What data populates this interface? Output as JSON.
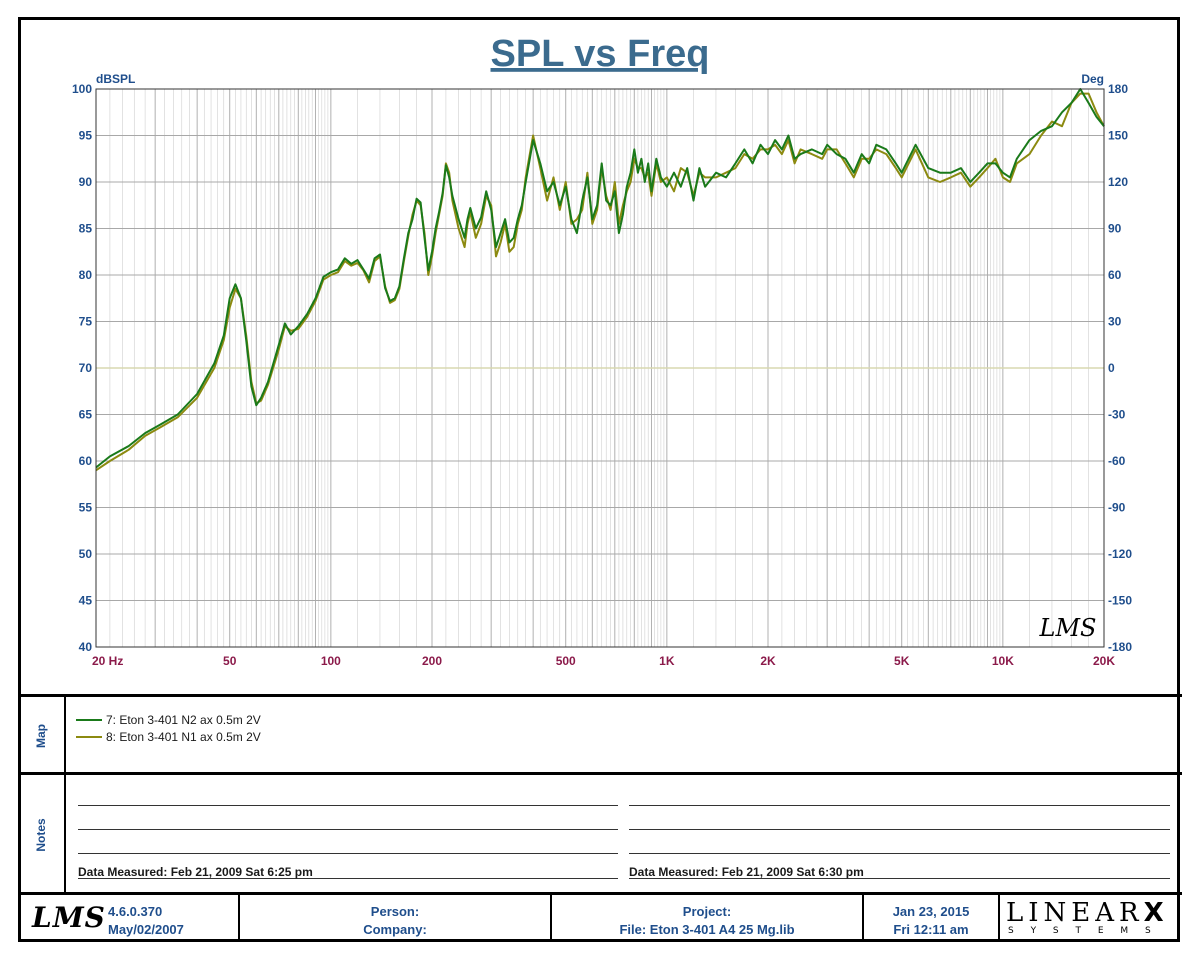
{
  "chart_data": {
    "type": "line",
    "title": "SPL vs Freq",
    "ylabel_left": "dBSPL",
    "ylabel_right": "Deg",
    "x_scale": "log",
    "xlim": [
      20,
      20000
    ],
    "ylim": [
      40,
      100
    ],
    "y2lim": [
      -180,
      180
    ],
    "x_ticks": [
      20,
      50,
      100,
      200,
      500,
      1000,
      2000,
      5000,
      10000,
      20000
    ],
    "x_tick_labels": [
      "20  Hz",
      "50",
      "100",
      "200",
      "500",
      "1K",
      "2K",
      "5K",
      "10K",
      "20K"
    ],
    "y_ticks": [
      100,
      95,
      90,
      85,
      80,
      75,
      70,
      65,
      60,
      55,
      50,
      45,
      40
    ],
    "y_tick_labels": [
      "100",
      "95",
      "90",
      "85",
      "80",
      "75",
      "70",
      "65",
      "60",
      "55",
      "50",
      "45",
      "40"
    ],
    "y2_tick_labels": [
      "180",
      "150",
      "120",
      "90",
      "60",
      "30",
      "0",
      "-30",
      "-60",
      "-90",
      "-120",
      "-150",
      "-180"
    ],
    "grid": true,
    "watermark": "LMS",
    "x": [
      20,
      22,
      25,
      28,
      31,
      35,
      40,
      45,
      48,
      50,
      52,
      54,
      56,
      58,
      60,
      62,
      65,
      70,
      73,
      76,
      80,
      85,
      90,
      95,
      100,
      105,
      110,
      115,
      120,
      125,
      130,
      135,
      140,
      145,
      150,
      155,
      160,
      165,
      170,
      175,
      180,
      185,
      190,
      195,
      200,
      205,
      210,
      215,
      220,
      225,
      230,
      240,
      250,
      255,
      260,
      270,
      280,
      290,
      300,
      310,
      320,
      330,
      340,
      350,
      360,
      370,
      380,
      400,
      420,
      440,
      460,
      480,
      500,
      520,
      540,
      560,
      580,
      600,
      620,
      640,
      660,
      680,
      700,
      720,
      740,
      760,
      780,
      800,
      820,
      840,
      860,
      880,
      900,
      930,
      960,
      1000,
      1050,
      1100,
      1150,
      1200,
      1250,
      1300,
      1400,
      1500,
      1600,
      1700,
      1800,
      1900,
      2000,
      2100,
      2200,
      2300,
      2400,
      2500,
      2700,
      2900,
      3000,
      3200,
      3400,
      3600,
      3800,
      4000,
      4200,
      4500,
      4800,
      5000,
      5500,
      6000,
      6500,
      7000,
      7500,
      8000,
      8500,
      9000,
      9500,
      10000,
      10500,
      11000,
      12000,
      13000,
      14000,
      15000,
      16000,
      17000,
      18000,
      19000,
      20000
    ],
    "series": [
      {
        "name": "7: Eton 3-401  N2 ax 0.5m 2V",
        "color": "#1a7a1a",
        "values": [
          59.3,
          60.5,
          61.6,
          63.0,
          63.9,
          65.0,
          67.2,
          70.5,
          73.5,
          77.5,
          79.0,
          77.5,
          73.0,
          68.0,
          66.0,
          66.8,
          68.5,
          72.5,
          74.8,
          73.6,
          74.5,
          75.8,
          77.5,
          79.8,
          80.3,
          80.6,
          81.8,
          81.2,
          81.6,
          80.6,
          79.6,
          81.8,
          82.2,
          78.6,
          77.2,
          77.5,
          78.8,
          81.8,
          84.5,
          86.0,
          88.2,
          87.8,
          84.0,
          80.5,
          82.5,
          85.0,
          86.8,
          88.8,
          91.8,
          90.5,
          88.5,
          86.0,
          84.0,
          86.0,
          87.2,
          85.0,
          86.2,
          89.0,
          87.0,
          83.0,
          84.5,
          86.0,
          83.5,
          84.0,
          86.0,
          87.5,
          90.0,
          94.5,
          92.0,
          89.0,
          90.0,
          87.5,
          89.5,
          86.0,
          84.5,
          88.0,
          90.5,
          86.0,
          87.5,
          92.0,
          88.0,
          87.5,
          89.0,
          84.5,
          86.5,
          89.5,
          91.0,
          93.5,
          91.0,
          92.5,
          90.0,
          92.0,
          89.0,
          92.5,
          90.5,
          89.5,
          91.0,
          89.5,
          91.5,
          88.0,
          91.5,
          89.5,
          91.0,
          90.5,
          92.0,
          93.5,
          92.0,
          94.0,
          93.0,
          94.5,
          93.5,
          95.0,
          92.5,
          93.0,
          93.5,
          93.0,
          94.0,
          93.0,
          92.5,
          91.0,
          93.0,
          92.0,
          94.0,
          93.5,
          92.0,
          91.0,
          94.0,
          91.5,
          91.0,
          91.0,
          91.5,
          90.0,
          91.0,
          92.0,
          92.0,
          91.0,
          90.5,
          92.5,
          94.5,
          95.5,
          96.0,
          97.5,
          98.5,
          100.0,
          98.5,
          97.0,
          96.0
        ]
      },
      {
        "name": "8: Eton 3-401  N1 ax 0.5m 2V",
        "color": "#8c8a10",
        "values": [
          59.0,
          60.0,
          61.2,
          62.7,
          63.6,
          64.7,
          66.8,
          70.0,
          73.0,
          76.5,
          78.5,
          77.5,
          73.5,
          68.5,
          66.2,
          66.5,
          68.2,
          72.0,
          74.5,
          74.0,
          74.2,
          75.5,
          77.2,
          79.5,
          80.0,
          80.3,
          81.5,
          81.0,
          81.3,
          80.5,
          79.2,
          81.5,
          82.0,
          78.8,
          77.0,
          77.3,
          78.5,
          81.5,
          84.2,
          86.5,
          88.0,
          87.5,
          84.5,
          80.0,
          82.0,
          84.5,
          86.5,
          88.5,
          92.0,
          91.0,
          88.0,
          85.0,
          83.0,
          85.5,
          86.8,
          84.0,
          85.5,
          88.5,
          87.5,
          82.0,
          83.5,
          85.5,
          82.5,
          83.0,
          85.5,
          87.0,
          90.5,
          95.0,
          91.5,
          88.0,
          90.5,
          87.0,
          90.0,
          85.5,
          86.0,
          87.0,
          91.0,
          85.5,
          87.0,
          91.5,
          88.5,
          87.0,
          90.0,
          85.5,
          87.5,
          89.0,
          90.0,
          92.5,
          91.5,
          91.5,
          90.5,
          91.0,
          88.5,
          92.0,
          90.0,
          90.5,
          89.0,
          91.5,
          91.0,
          88.5,
          91.0,
          90.5,
          90.5,
          91.0,
          91.5,
          93.0,
          92.5,
          93.5,
          93.5,
          94.0,
          93.0,
          94.5,
          92.0,
          93.5,
          93.0,
          92.5,
          93.5,
          93.5,
          92.0,
          90.5,
          92.5,
          92.5,
          93.5,
          93.0,
          91.5,
          90.5,
          93.5,
          90.5,
          90.0,
          90.5,
          91.0,
          89.5,
          90.5,
          91.5,
          92.5,
          90.5,
          90.0,
          92.0,
          93.0,
          95.0,
          96.5,
          96.0,
          98.5,
          99.5,
          99.5,
          97.5,
          96.0
        ]
      }
    ]
  },
  "map": {
    "label": "Map",
    "items": [
      {
        "label": "7: Eton 3-401  N2 ax 0.5m 2V",
        "color": "#1a7a1a"
      },
      {
        "label": "8: Eton 3-401  N1 ax 0.5m 2V",
        "color": "#8c8a10"
      }
    ]
  },
  "notes": {
    "label": "Notes",
    "left_measured": "Data Measured: Feb 21, 2009  Sat  6:25 pm",
    "right_measured": "Data Measured: Feb 21, 2009  Sat  6:30 pm"
  },
  "footer": {
    "logo": "LMS",
    "version": "4.6.0.370",
    "version_date": "May/02/2007",
    "person_label": "Person:",
    "company_label": "Company:",
    "project_label": "Project:",
    "file_label": "File: Eton 3-401 A4 25 Mg.lib",
    "date": "Jan 23, 2015",
    "time": "Fri 12:11 am",
    "brand_top": "LINEAR",
    "brand_x": "X",
    "brand_bottom": "S Y S T E M S"
  },
  "colors": {
    "title": "#3b6b8e",
    "axis_text": "#1f4e8c",
    "x_tick_text": "#8b1a4a",
    "grid": "#a8a8a8",
    "zero_line": "#d8d8b0"
  }
}
